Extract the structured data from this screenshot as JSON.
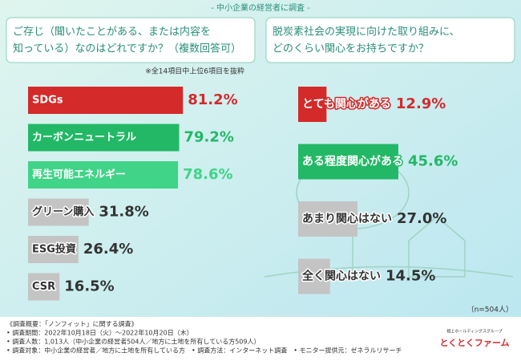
{
  "header": "- 中小企業の経営者に調査 -",
  "chart_data": [
    {
      "type": "bar",
      "title": [
        "ご存じ（聞いたことがある、または内容を",
        "知っている）なのはどれですか？（複数回答可）"
      ],
      "note": "※全14項目中上位6項目を抜粋",
      "categories": [
        "SDGs",
        "カーボンニュートラル",
        "再生可能エネルギー",
        "グリーン購入",
        "ESG投資",
        "CSR"
      ],
      "values": [
        81.2,
        79.2,
        78.6,
        31.8,
        26.4,
        16.5
      ],
      "value_labels": [
        "81.2%",
        "79.2%",
        "78.6%",
        "31.8%",
        "26.4%",
        "16.5%"
      ],
      "colors": [
        "#d42a2a",
        "#22b866",
        "#3fd487",
        "#c4c4c4",
        "#c4c4c4",
        "#c4c4c4"
      ]
    },
    {
      "type": "bar",
      "title": [
        "脱炭素社会の実現に向けた取り組みに、",
        "どのくらい関心をお持ちですか？"
      ],
      "categories": [
        "とても関心がある",
        "ある程度関心がある",
        "あまり関心はない",
        "全く関心はない"
      ],
      "values": [
        12.9,
        45.6,
        27.0,
        14.5
      ],
      "value_labels": [
        "12.9%",
        "45.6%",
        "27.0%",
        "14.5%"
      ],
      "colors": [
        "#d42a2a",
        "#22b866",
        "#c4c4c4",
        "#c4c4c4"
      ],
      "sample": "（n=504人）"
    }
  ],
  "footer": [
    "《調査概要：「ノンフィット」に関する調査》",
    "• 調査期間：2022年10月18日（火）～2022年10月20日（木）",
    "• 調査人数：1,013人（中小企業の経営者504人／地方に土地を所有している方509人）",
    "• 調査対象：中小企業の経営者／地方に土地を所有している方　• 調査方法：インターネット調査　• モニター提供元：ゼネラルリサーチ"
  ],
  "logo": {
    "group": "相上ホールディングスグループ",
    "name": "とくとくファーム"
  }
}
